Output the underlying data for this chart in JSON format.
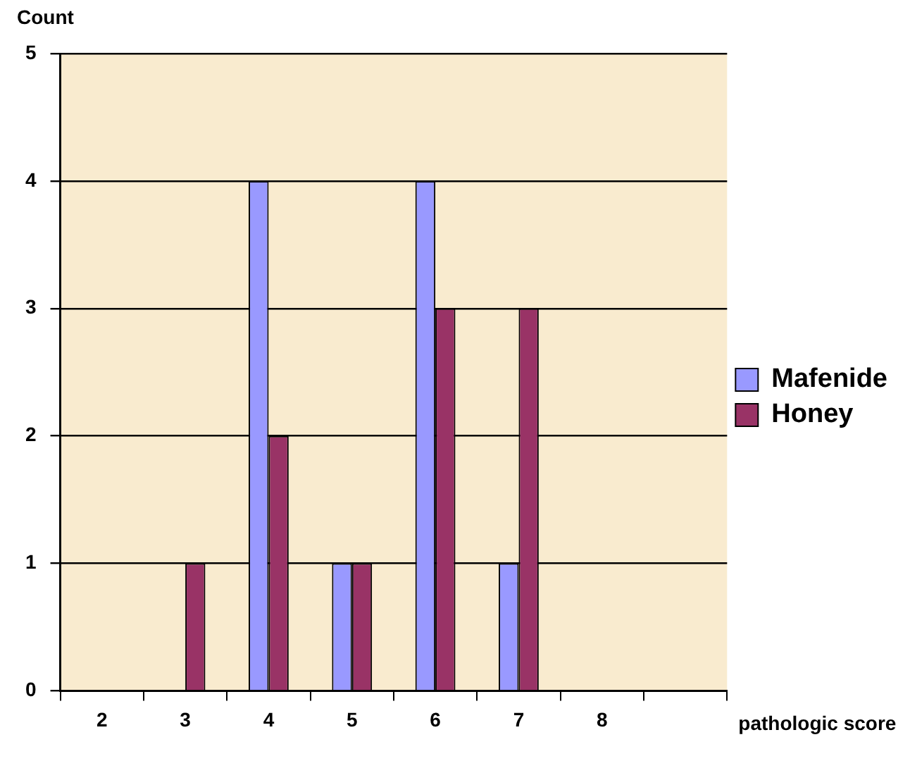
{
  "chart_data": {
    "type": "bar",
    "xlabel": "pathologic score",
    "ylabel": "Count",
    "categories": [
      "2",
      "3",
      "4",
      "5",
      "6",
      "7",
      "8",
      null
    ],
    "series": [
      {
        "name": "Mafenide",
        "color": "#9999ff",
        "values": [
          0,
          0,
          4,
          1,
          4,
          1,
          0,
          null
        ]
      },
      {
        "name": "Honey",
        "color": "#993366",
        "values": [
          0,
          1,
          2,
          1,
          3,
          3,
          0,
          null
        ]
      }
    ],
    "ylim": [
      0,
      5
    ],
    "yticks": [
      0,
      1,
      2,
      3,
      4,
      5
    ],
    "grid": "y",
    "legend": "right"
  }
}
